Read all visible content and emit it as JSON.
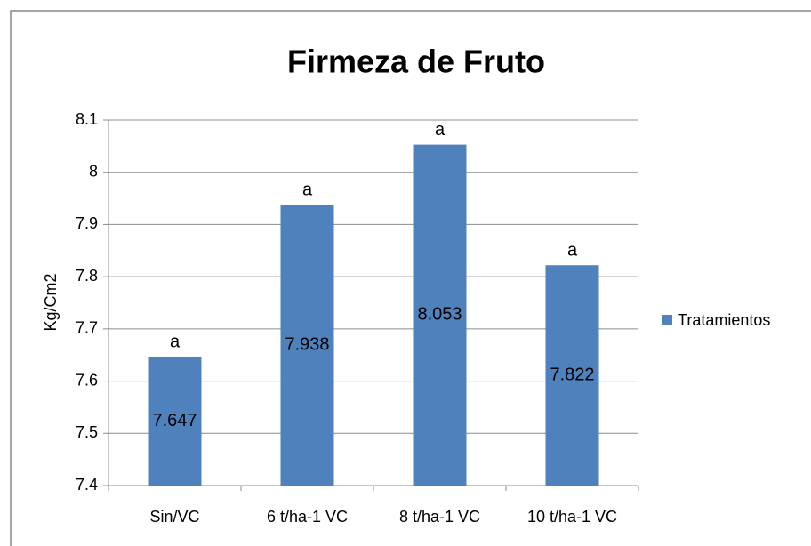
{
  "chart_data": {
    "type": "bar",
    "title": "Firmeza de Fruto",
    "ylabel": "Kg/Cm2",
    "categories": [
      "Sin/VC",
      "6 t/ha-1 VC",
      "8 t/ha-1 VC",
      "10 t/ha-1 VC"
    ],
    "series": [
      {
        "name": "Tratamientos",
        "color": "#4f81bd",
        "values": [
          7.647,
          7.938,
          8.053,
          7.822
        ]
      }
    ],
    "annotations": [
      "a",
      "a",
      "a",
      "a"
    ],
    "ylim": [
      7.4,
      8.1
    ],
    "yticks": [
      7.4,
      7.5,
      7.6,
      7.7,
      7.8,
      7.9,
      8,
      8.1
    ],
    "grid": true,
    "legend": "right"
  }
}
